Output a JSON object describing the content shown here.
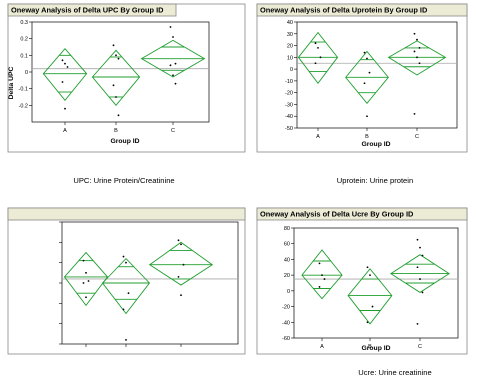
{
  "chart_data": [
    {
      "type": "scatter",
      "title": "Oneway Analysis of Delta UPC By Group ID",
      "xlabel": "Group ID",
      "ylabel": "Delta UPC",
      "ylim": [
        -0.3,
        0.3
      ],
      "yticks": [
        -0.2,
        -0.1,
        0,
        0.1,
        0.2,
        0.3
      ],
      "yticklabels": [
        "-0.2",
        "-0.1",
        "0",
        "0.1",
        "0.2",
        "0.3"
      ],
      "categories": [
        "A",
        "B",
        "C"
      ],
      "grand_mean": 0.02,
      "groups": [
        {
          "mean": -0.01,
          "ci": [
            -0.17,
            0.14
          ],
          "sep": [
            -0.12,
            0.1
          ],
          "points": [
            0.07,
            0.05,
            0.03,
            -0.06,
            -0.22
          ]
        },
        {
          "mean": -0.03,
          "ci": [
            -0.2,
            0.13
          ],
          "sep": [
            -0.15,
            0.09
          ],
          "points": [
            0.16,
            0.1,
            0.08,
            -0.08,
            -0.15,
            -0.26
          ]
        },
        {
          "mean": 0.08,
          "ci": [
            -0.03,
            0.19
          ],
          "sep": [
            0.01,
            0.15
          ],
          "points": [
            0.27,
            0.21,
            0.05,
            0.04,
            -0.02,
            -0.07
          ]
        }
      ],
      "caption": "UPC: Urine Protein/Creatinine"
    },
    {
      "type": "scatter",
      "title": "Oneway Analysis of Delta Uprotein By Group ID",
      "xlabel": "Group ID",
      "ylabel": "",
      "ylim": [
        -50,
        40
      ],
      "yticks": [
        40,
        30,
        20,
        10,
        0,
        -10,
        -20,
        -30,
        -40,
        -50
      ],
      "yticklabels": [
        "40",
        "30",
        "20",
        "10",
        "0",
        "-10",
        "-20",
        "-30",
        "-40",
        "-50"
      ],
      "categories": [
        "A",
        "B",
        "C"
      ],
      "grand_mean": 5,
      "groups": [
        {
          "mean": 10,
          "ci": [
            -12,
            31
          ],
          "sep": [
            -2,
            23
          ],
          "points": [
            22,
            18,
            10,
            5
          ]
        },
        {
          "mean": -7,
          "ci": [
            -29,
            15
          ],
          "sep": [
            -20,
            8
          ],
          "points": [
            14,
            9,
            -3,
            -12,
            -40
          ]
        },
        {
          "mean": 10,
          "ci": [
            -5,
            24
          ],
          "sep": [
            2,
            18
          ],
          "points": [
            30,
            25,
            18,
            15,
            10,
            5,
            -38
          ]
        }
      ],
      "caption": "Uprotein: Urine protein"
    },
    {
      "type": "scatter",
      "title": "",
      "xlabel": "",
      "ylabel": "",
      "ylim": [
        -0.3,
        0.3
      ],
      "yticks": [
        0.3,
        0.2,
        0.1,
        0,
        -0.1,
        -0.2,
        -0.3
      ],
      "yticklabels": [
        "",
        "",
        "",
        "",
        "",
        "",
        ""
      ],
      "categories": [
        "",
        "",
        ""
      ],
      "grand_mean": 0.02,
      "groups": [
        {
          "mean": 0.03,
          "ci": [
            -0.11,
            0.15
          ],
          "sep": [
            -0.05,
            0.11
          ],
          "points": [
            0.11,
            0.05,
            0.01,
            0.0,
            -0.07
          ]
        },
        {
          "mean": 0.0,
          "ci": [
            -0.15,
            0.12
          ],
          "sep": [
            -0.08,
            0.08
          ],
          "points": [
            0.13,
            0.1,
            -0.05,
            -0.13,
            -0.28
          ]
        },
        {
          "mean": 0.09,
          "ci": [
            -0.01,
            0.2
          ],
          "sep": [
            0.02,
            0.16
          ],
          "points": [
            0.21,
            0.19,
            0.09,
            0.03,
            -0.06
          ]
        }
      ],
      "caption": ""
    },
    {
      "type": "scatter",
      "title": "Oneway Analysis of Delta Ucre By Group ID",
      "xlabel": "Group ID",
      "ylabel": "",
      "ylim": [
        -60,
        80
      ],
      "yticks": [
        80,
        60,
        40,
        20,
        0,
        -20,
        -40,
        -60
      ],
      "yticklabels": [
        "80",
        "60",
        "40",
        "20",
        "0",
        "-20",
        "-40",
        "-60"
      ],
      "categories": [
        "A",
        "B",
        "C"
      ],
      "grand_mean": 15,
      "groups": [
        {
          "mean": 20,
          "ci": [
            -10,
            52
          ],
          "sep": [
            3,
            38
          ],
          "points": [
            35,
            20,
            15,
            5
          ]
        },
        {
          "mean": -6,
          "ci": [
            -42,
            28
          ],
          "sep": [
            -25,
            15
          ],
          "points": [
            30,
            20,
            -20,
            -40
          ]
        },
        {
          "mean": 22,
          "ci": [
            -2,
            46
          ],
          "sep": [
            10,
            34
          ],
          "points": [
            65,
            55,
            45,
            30,
            15,
            -2,
            -42
          ]
        }
      ],
      "caption": "Ucre: Urine creatinine"
    }
  ],
  "colors": {
    "diamond": "#1f9e2e",
    "grand_mean": "#a8a8a8",
    "title_bar": "#ecebd6",
    "frame": "#888888"
  }
}
